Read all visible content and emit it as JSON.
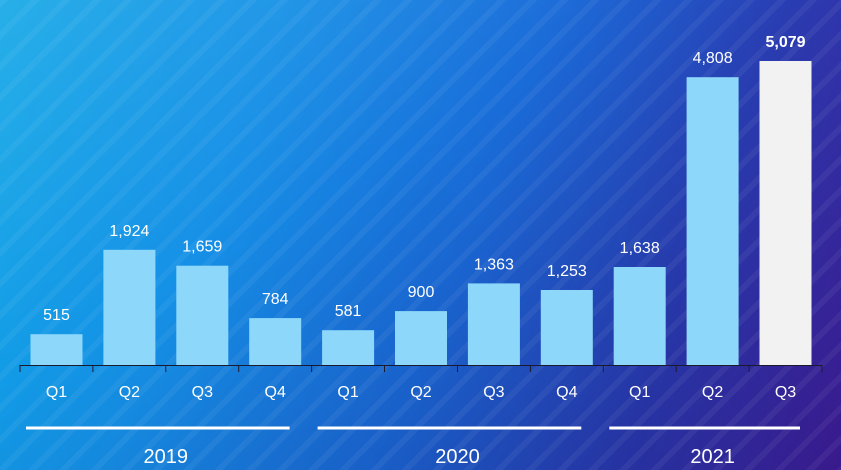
{
  "chart_data": {
    "type": "bar",
    "categories": [
      "Q1",
      "Q2",
      "Q3",
      "Q4",
      "Q1",
      "Q2",
      "Q3",
      "Q4",
      "Q1",
      "Q2",
      "Q3"
    ],
    "groups": [
      {
        "label": "2019",
        "start": 0,
        "end": 3
      },
      {
        "label": "2020",
        "start": 4,
        "end": 7
      },
      {
        "label": "2021",
        "start": 8,
        "end": 10
      }
    ],
    "values": [
      515,
      1924,
      1659,
      784,
      581,
      900,
      1363,
      1253,
      1638,
      4808,
      5079
    ],
    "value_labels": [
      "515",
      "1,924",
      "1,659",
      "784",
      "581",
      "900",
      "1,363",
      "1,253",
      "1,638",
      "4,808",
      "5,079"
    ],
    "highlight_index": 10,
    "title": "",
    "xlabel": "",
    "ylabel": "",
    "ylim": [
      0,
      5079
    ],
    "grid": false,
    "colors": {
      "bar": "#8dd7fb",
      "highlight": "#f2f2f2",
      "text": "#ffffff",
      "axis": "#1a1a2e",
      "group_line": "#ffffff"
    }
  }
}
